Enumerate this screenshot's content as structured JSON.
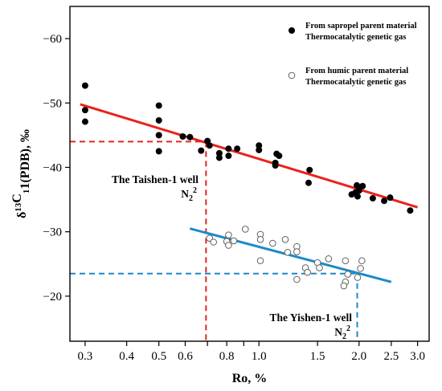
{
  "chart_data": {
    "type": "scatter",
    "xlabel": "Ro, %",
    "ylabel": "δ13C1(PDB), ‰",
    "xscale": "log",
    "xlim": [
      0.27,
      3.25
    ],
    "ylim": [
      -65,
      -13
    ],
    "y_reversed": true,
    "x_ticks": [
      0.3,
      0.4,
      0.5,
      0.6,
      0.7,
      0.8,
      0.9,
      1.0,
      1.5,
      2.0,
      2.5,
      3.0
    ],
    "x_tick_labels": [
      "0.3",
      "0.4",
      "0.5",
      "0.6",
      "",
      "0.8",
      "",
      "1.0",
      "1.5",
      "2.0",
      "2.5",
      "3.0"
    ],
    "y_ticks": [
      -60,
      -50,
      -40,
      -30,
      -20
    ],
    "y_tick_labels": [
      "−60",
      "−50",
      "−40",
      "−30",
      "−20"
    ],
    "grid": false,
    "legend_position": "top-right",
    "series": [
      {
        "name": "From sapropel parent material Thermocatalytic genetic gas",
        "name_lines": [
          "From sapropel parent material",
          "Thermocatalytic genetic gas"
        ],
        "marker": "filled-circle",
        "color": "#000000",
        "points": [
          [
            0.3,
            -52.7
          ],
          [
            0.3,
            -48.9
          ],
          [
            0.3,
            -47.1
          ],
          [
            0.5,
            -49.6
          ],
          [
            0.5,
            -47.3
          ],
          [
            0.5,
            -45.0
          ],
          [
            0.5,
            -42.5
          ],
          [
            0.59,
            -44.8
          ],
          [
            0.62,
            -44.7
          ],
          [
            0.67,
            -42.6
          ],
          [
            0.7,
            -44.1
          ],
          [
            0.71,
            -43.4
          ],
          [
            0.76,
            -42.2
          ],
          [
            0.76,
            -41.5
          ],
          [
            0.81,
            -42.9
          ],
          [
            0.81,
            -41.8
          ],
          [
            0.86,
            -42.9
          ],
          [
            1.0,
            -43.4
          ],
          [
            1.0,
            -42.7
          ],
          [
            1.13,
            -42.1
          ],
          [
            1.15,
            -41.8
          ],
          [
            1.12,
            -40.7
          ],
          [
            1.12,
            -40.3
          ],
          [
            1.42,
            -39.6
          ],
          [
            1.41,
            -37.6
          ],
          [
            1.9,
            -35.8
          ],
          [
            1.95,
            -36.1
          ],
          [
            1.97,
            -37.2
          ],
          [
            2.0,
            -36.4
          ],
          [
            1.98,
            -35.5
          ],
          [
            2.05,
            -37.1
          ],
          [
            2.2,
            -35.2
          ],
          [
            2.38,
            -34.8
          ],
          [
            2.48,
            -35.3
          ],
          [
            2.85,
            -33.3
          ]
        ]
      },
      {
        "name": "From humic parent material Thermocatalytic genetic gas",
        "name_lines": [
          "From humic parent material",
          "Thermocatalytic genetic gas"
        ],
        "marker": "open-circle",
        "color": "#606060",
        "points": [
          [
            0.71,
            -29.0
          ],
          [
            0.73,
            -28.4
          ],
          [
            0.8,
            -28.5
          ],
          [
            0.81,
            -29.5
          ],
          [
            0.81,
            -27.9
          ],
          [
            0.84,
            -28.6
          ],
          [
            0.91,
            -30.4
          ],
          [
            1.01,
            -29.6
          ],
          [
            1.01,
            -28.8
          ],
          [
            1.01,
            -25.5
          ],
          [
            1.1,
            -28.2
          ],
          [
            1.2,
            -28.8
          ],
          [
            1.22,
            -26.8
          ],
          [
            1.3,
            -27.7
          ],
          [
            1.3,
            -26.9
          ],
          [
            1.3,
            -22.6
          ],
          [
            1.38,
            -24.4
          ],
          [
            1.4,
            -23.7
          ],
          [
            1.5,
            -25.2
          ],
          [
            1.52,
            -24.4
          ],
          [
            1.62,
            -25.8
          ],
          [
            1.82,
            -25.5
          ],
          [
            1.85,
            -23.4
          ],
          [
            1.82,
            -22.2
          ],
          [
            1.8,
            -21.6
          ],
          [
            1.98,
            -22.9
          ],
          [
            2.02,
            -24.3
          ],
          [
            2.04,
            -25.5
          ]
        ]
      }
    ],
    "trend_lines": [
      {
        "color": "#e8231c",
        "from": [
          0.29,
          -49.8
        ],
        "to": [
          3.0,
          -33.8
        ]
      },
      {
        "color": "#1b8ac8",
        "from": [
          0.62,
          -30.5
        ],
        "to": [
          2.5,
          -22.2
        ]
      }
    ],
    "reference_lines": [
      {
        "color": "#e8231c",
        "x": 0.693,
        "y": -44.0
      },
      {
        "color": "#1b8ac8",
        "x": 1.975,
        "y": -23.5
      }
    ],
    "annotations": [
      {
        "id": "taishen-well",
        "text": "The Taishen-1 well",
        "formula_base": "N",
        "formula_sub": "2",
        "formula_sup": "2"
      },
      {
        "id": "yishen-well",
        "text": "The Yishen-1 well",
        "formula_base": "N",
        "formula_sub": "2",
        "formula_sup": "2"
      }
    ]
  }
}
